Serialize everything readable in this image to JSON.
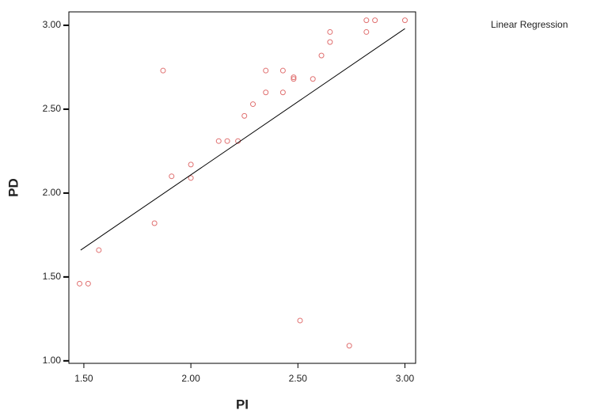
{
  "chart_data": {
    "type": "scatter",
    "x_label": "PI",
    "y_label": "PD",
    "legend_label": "Linear Regression",
    "xlim": [
      1.43,
      3.05
    ],
    "ylim": [
      0.985,
      3.08
    ],
    "xticks": [
      {
        "value": 1.5,
        "label": "1.50"
      },
      {
        "value": 2,
        "label": "2.00"
      },
      {
        "value": 2.5,
        "label": "2.50"
      },
      {
        "value": 3,
        "label": "3.00"
      }
    ],
    "yticks": [
      {
        "value": 1,
        "label": "1.00"
      },
      {
        "value": 1.5,
        "label": "1.50"
      },
      {
        "value": 2,
        "label": "2.00"
      },
      {
        "value": 2.5,
        "label": "2.50"
      },
      {
        "value": 3,
        "label": "3.00"
      }
    ],
    "series": [
      {
        "color": "#e07070",
        "x": [
          1.48,
          1.52,
          1.57,
          1.83,
          1.87,
          1.91,
          2.0,
          2.0,
          2.13,
          2.17,
          2.22,
          2.25,
          2.29,
          2.35,
          2.35,
          2.43,
          2.43,
          2.48,
          2.48,
          2.51,
          2.57,
          2.61,
          2.65,
          2.65,
          2.74,
          2.82,
          2.82,
          2.86,
          3.0
        ],
        "values": [
          1.46,
          1.46,
          1.66,
          1.82,
          2.73,
          2.1,
          2.17,
          2.09,
          2.31,
          2.31,
          2.31,
          2.46,
          2.53,
          2.73,
          2.6,
          2.73,
          2.6,
          2.68,
          2.69,
          1.24,
          2.68,
          2.82,
          2.96,
          2.9,
          1.09,
          3.03,
          2.96,
          3.03,
          3.03
        ]
      },
      {
        "color": "#000000",
        "x": [
          1.485,
          3.0
        ],
        "values": [
          1.66,
          2.98
        ]
      }
    ]
  }
}
